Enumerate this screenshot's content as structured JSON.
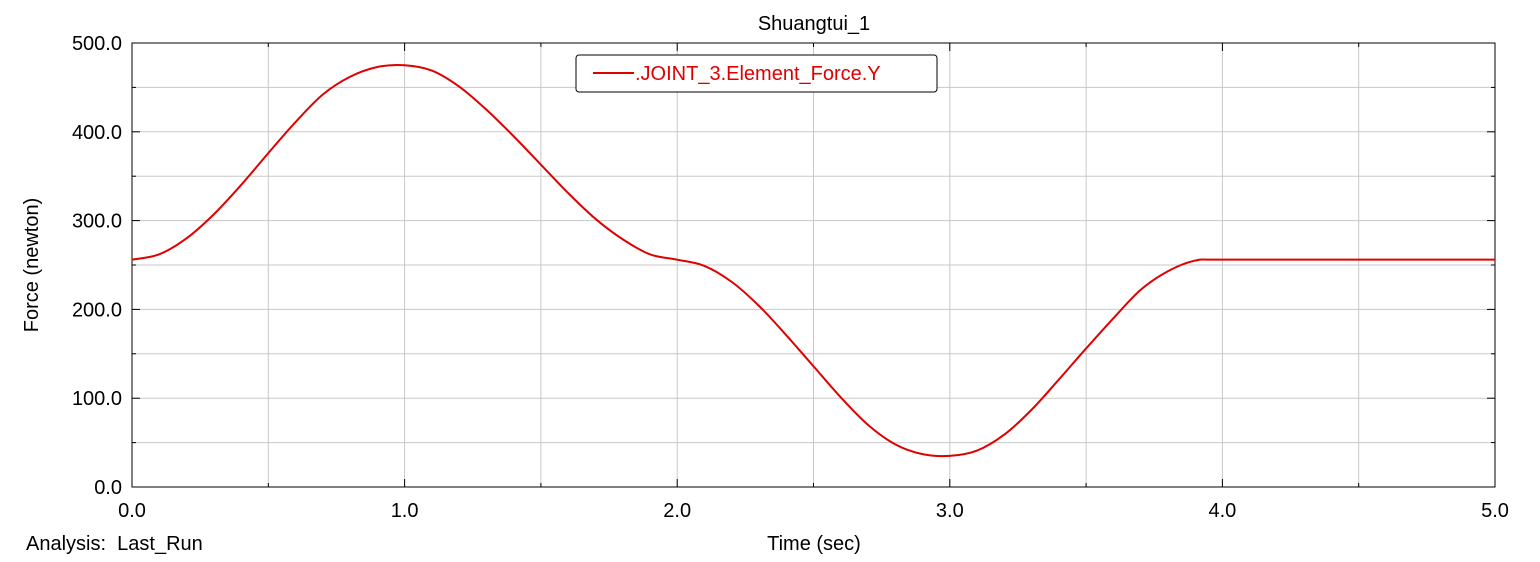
{
  "chart_data": {
    "type": "line",
    "title": "Shuangtui_1",
    "xlabel": "Time (sec)",
    "ylabel": "Force (newton)",
    "analysis_label": "Analysis:  Last_Run",
    "xlim": [
      0.0,
      5.0
    ],
    "ylim": [
      0.0,
      500.0
    ],
    "x_ticks": [
      "0.0",
      "1.0",
      "2.0",
      "3.0",
      "4.0",
      "5.0"
    ],
    "x_tick_values": [
      0.0,
      1.0,
      2.0,
      3.0,
      4.0,
      5.0
    ],
    "x_minor_values": [
      0.5,
      1.5,
      2.5,
      3.5,
      4.5
    ],
    "y_ticks": [
      "0.0",
      "100.0",
      "200.0",
      "300.0",
      "400.0",
      "500.0"
    ],
    "y_tick_values": [
      0.0,
      100.0,
      200.0,
      300.0,
      400.0,
      500.0
    ],
    "y_minor_values": [
      50,
      150,
      250,
      350,
      450
    ],
    "grid": true,
    "legend_position": "top-center",
    "series": [
      {
        "name": ".JOINT_3.Element_Force.Y",
        "color": "#e00000",
        "x": [
          0.0,
          0.1,
          0.2,
          0.3,
          0.4,
          0.5,
          0.6,
          0.7,
          0.8,
          0.9,
          1.0,
          1.1,
          1.2,
          1.3,
          1.4,
          1.5,
          1.6,
          1.7,
          1.8,
          1.9,
          2.0,
          2.1,
          2.2,
          2.3,
          2.4,
          2.5,
          2.6,
          2.7,
          2.8,
          2.9,
          3.0,
          3.1,
          3.2,
          3.3,
          3.4,
          3.5,
          3.6,
          3.7,
          3.8,
          3.9,
          4.0,
          4.5,
          5.0
        ],
        "y": [
          256,
          262,
          280,
          307,
          340,
          376,
          411,
          442,
          462,
          473,
          475,
          469,
          451,
          425,
          395,
          363,
          331,
          302,
          279,
          262,
          256,
          249,
          231,
          204,
          171,
          136,
          101,
          70,
          48,
          37,
          35,
          41,
          59,
          87,
          121,
          156,
          190,
          222,
          243,
          255,
          256,
          256,
          256
        ]
      }
    ]
  }
}
